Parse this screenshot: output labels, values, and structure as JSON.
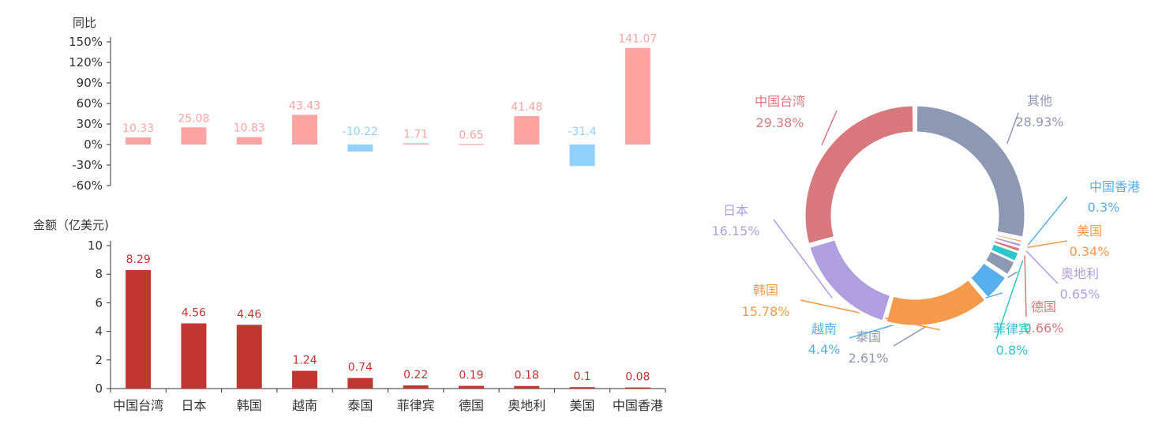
{
  "chart_data": [
    {
      "type": "bar",
      "ylabel": "同比",
      "ylim": [
        -60,
        150
      ],
      "yticks": [
        "150%",
        "120%",
        "90%",
        "60%",
        "30%",
        "0%",
        "-30%",
        "-60%"
      ],
      "categories": [
        "中国台湾",
        "日本",
        "韩国",
        "越南",
        "泰国",
        "菲律宾",
        "德国",
        "奥地利",
        "美国",
        "中国香港"
      ],
      "values": [
        10.33,
        25.08,
        10.83,
        43.43,
        -10.22,
        1.71,
        0.65,
        41.48,
        -31.4,
        141.07
      ],
      "data_labels": [
        "10.33",
        "25.08",
        "10.83",
        "43.43",
        "-10.22",
        "1.71",
        "0.65",
        "41.48",
        "-31.4",
        "141.07"
      ],
      "colors": {
        "positive": "#ffa3a3",
        "negative": "#91d0fa"
      }
    },
    {
      "type": "bar",
      "ylabel": "金额（亿美元)",
      "ylim": [
        0,
        10
      ],
      "yticks": [
        "10",
        "8",
        "6",
        "4",
        "2",
        "0"
      ],
      "categories": [
        "中国台湾",
        "日本",
        "韩国",
        "越南",
        "泰国",
        "菲律宾",
        "德国",
        "奥地利",
        "美国",
        "中国香港"
      ],
      "values": [
        8.29,
        4.56,
        4.46,
        1.24,
        0.74,
        0.22,
        0.19,
        0.18,
        0.1,
        0.08
      ],
      "data_labels": [
        "8.29",
        "4.56",
        "4.46",
        "1.24",
        "0.74",
        "0.22",
        "0.19",
        "0.18",
        "0.1",
        "0.08"
      ],
      "colors": {
        "bar": "#c23531"
      }
    },
    {
      "type": "pie",
      "slices": [
        {
          "name": "其他",
          "value": 28.93,
          "label": "28.93%",
          "color": "#8d98b3"
        },
        {
          "name": "中国香港",
          "value": 0.3,
          "label": "0.3%",
          "color": "#58afed"
        },
        {
          "name": "美国",
          "value": 0.34,
          "label": "0.34%",
          "color": "#f59a4a"
        },
        {
          "name": "奥地利",
          "value": 0.65,
          "label": "0.65%",
          "color": "#b19ee0"
        },
        {
          "name": "德国",
          "value": 0.66,
          "label": "0.66%",
          "color": "#d9787c"
        },
        {
          "name": "菲律宾",
          "value": 0.8,
          "label": "0.8%",
          "color": "#2ec7c9"
        },
        {
          "name": "泰国",
          "value": 2.61,
          "label": "2.61%",
          "color": "#8d98b3"
        },
        {
          "name": "越南",
          "value": 4.4,
          "label": "4.4%",
          "color": "#58afed"
        },
        {
          "name": "韩国",
          "value": 15.78,
          "label": "15.78%",
          "color": "#f59a4a"
        },
        {
          "name": "日本",
          "value": 16.15,
          "label": "16.15%",
          "color": "#b19ee0"
        },
        {
          "name": "中国台湾",
          "value": 29.38,
          "label": "29.38%",
          "color": "#d9787c"
        }
      ]
    }
  ]
}
